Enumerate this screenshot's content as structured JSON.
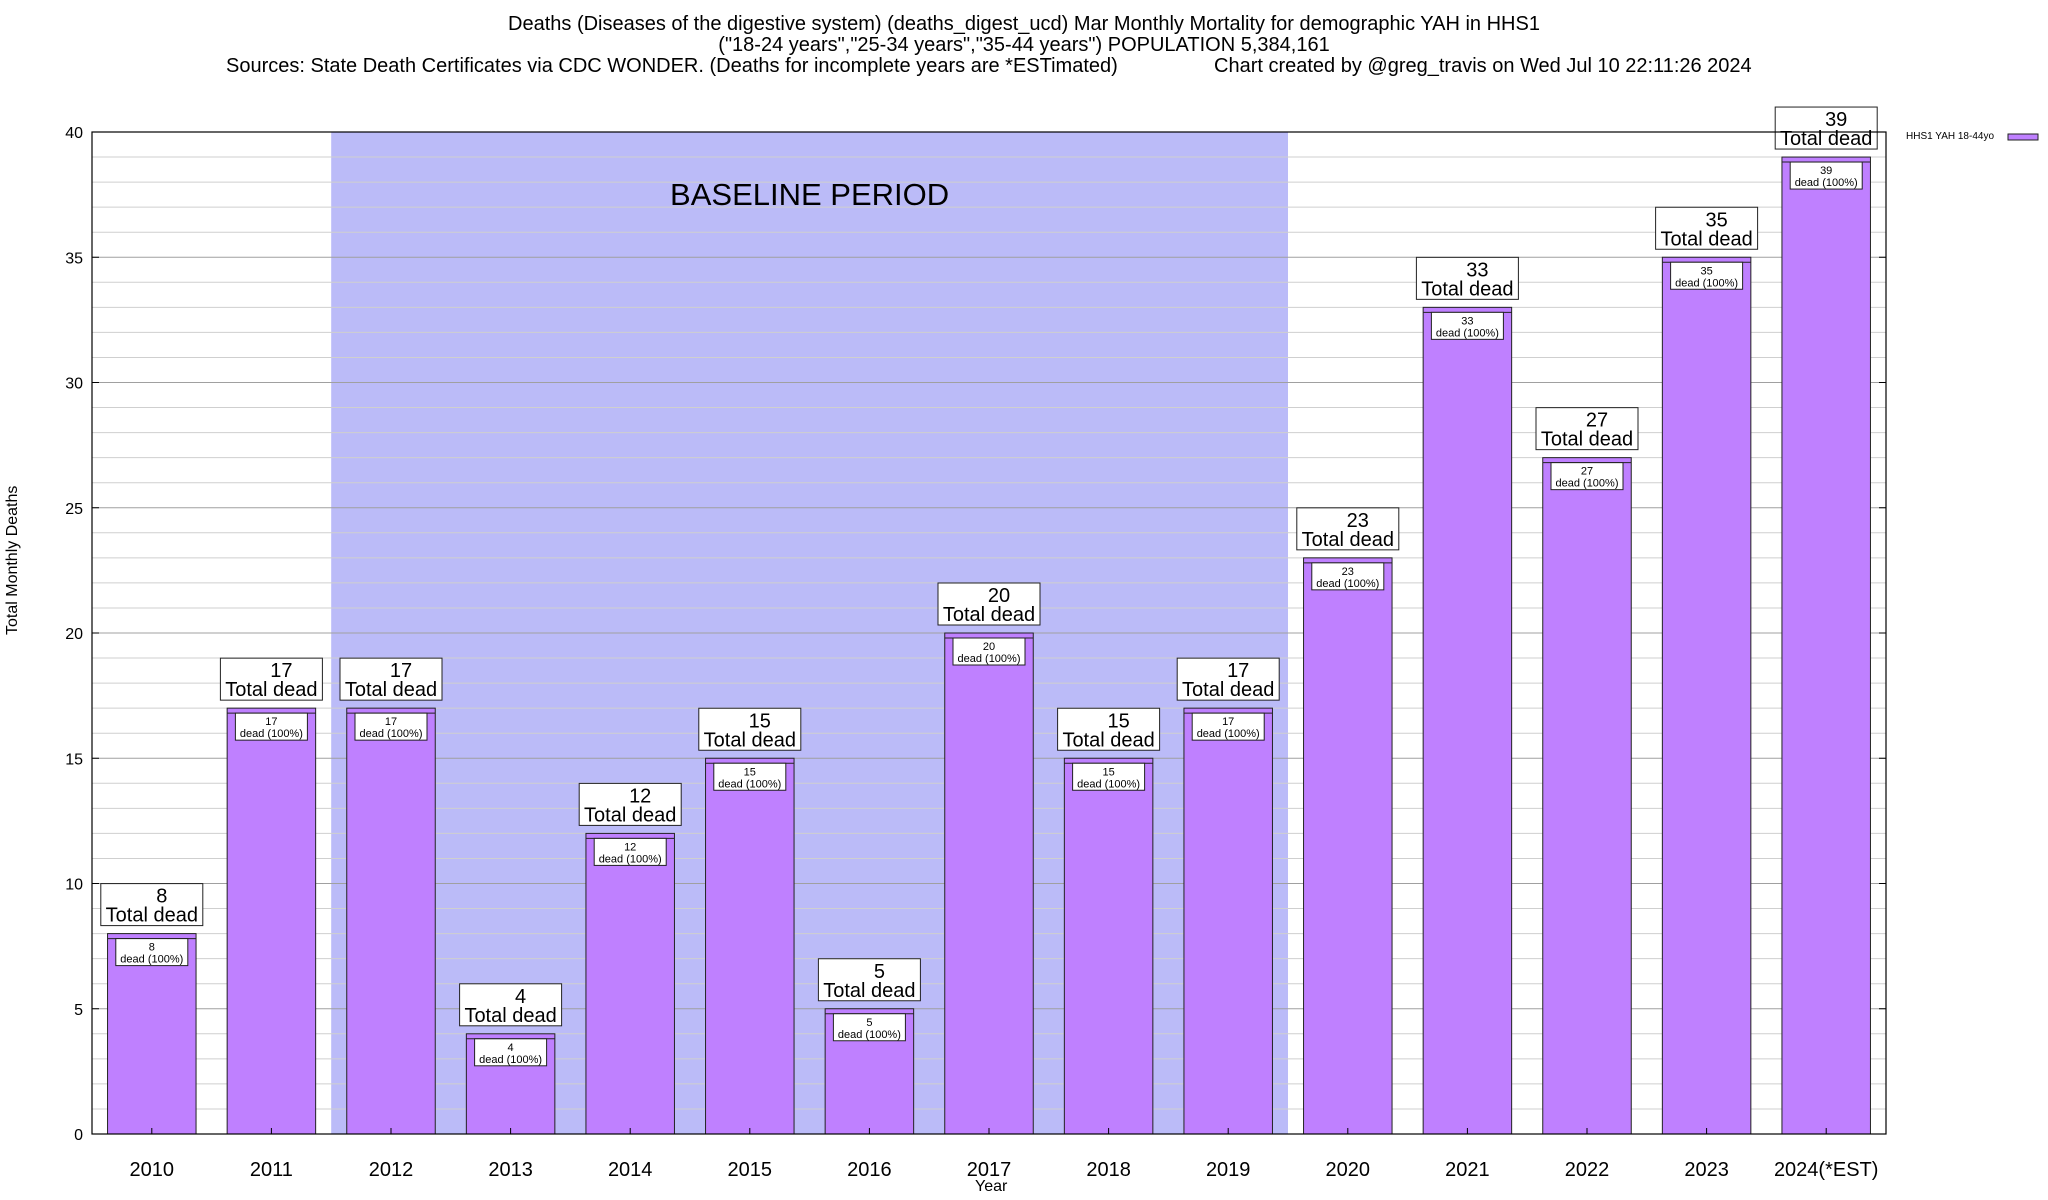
{
  "chart_data": {
    "type": "bar",
    "title": "Deaths (Diseases of the digestive system) (deaths_digest_ucd) Mar Monthly Mortality for demographic YAH in HHS1",
    "subtitle": "(\"18-24 years\",\"25-34 years\",\"35-44 years\") POPULATION 5,384,161",
    "sources": "Sources: State Death Certificates via CDC WONDER. (Deaths for incomplete years are *ESTimated)",
    "credit": "Chart created by @greg_travis on Wed Jul 10 22:11:26 2024",
    "xlabel": "Year",
    "ylabel": "Total Monthly Deaths",
    "ylim": [
      0,
      40
    ],
    "yticks": [
      0,
      5,
      10,
      15,
      20,
      25,
      30,
      35,
      40
    ],
    "grid": true,
    "legend_position": "top-right",
    "categories": [
      "2010",
      "2011",
      "2012",
      "2013",
      "2014",
      "2015",
      "2016",
      "2017",
      "2018",
      "2019",
      "2020",
      "2021",
      "2022",
      "2023",
      "2024(*EST)"
    ],
    "series": [
      {
        "name": "HHS1 YAH 18-44yo",
        "color": "#bf80ff",
        "values": [
          8,
          17,
          17,
          4,
          12,
          15,
          5,
          20,
          15,
          17,
          23,
          33,
          27,
          35,
          39
        ]
      }
    ],
    "total_label": "Total dead",
    "inner_label": "dead (100%)",
    "baseline": {
      "label": "BASELINE PERIOD",
      "start": "2012",
      "end": "2019",
      "color": "#bbbbf8"
    },
    "colors": {
      "bar": "#bf80ff",
      "baseline_band": "#bbbbf8",
      "grid": "#b4b4b4"
    }
  }
}
